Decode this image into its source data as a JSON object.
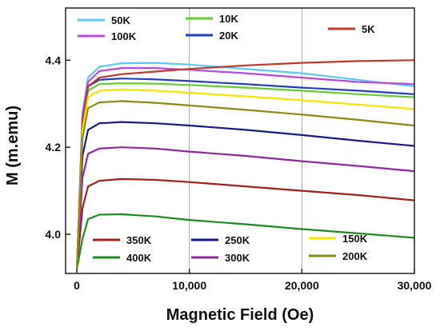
{
  "chart_data": {
    "type": "line",
    "title": "",
    "xlabel": "Magnetic Field (Oe)",
    "ylabel": "M (m.emu)",
    "xlim": [
      -1000,
      30000
    ],
    "ylim": [
      3.91,
      4.52
    ],
    "grid": "vertical",
    "x_ticks": [
      {
        "value": 0,
        "label": "0"
      },
      {
        "value": 10000,
        "label": "10,000"
      },
      {
        "value": 20000,
        "label": "20,000"
      },
      {
        "value": 30000,
        "label": "30,000"
      }
    ],
    "y_ticks": [
      {
        "value": 4.0,
        "label": "4.0"
      },
      {
        "value": 4.2,
        "label": "4.2"
      },
      {
        "value": 4.4,
        "label": "4.4"
      }
    ],
    "series": [
      {
        "name": "50K",
        "color": "#5ac8fa",
        "x": [
          0,
          500,
          1000,
          2000,
          4000,
          7000,
          10000,
          15000,
          20000,
          25000,
          30000
        ],
        "y": [
          3.92,
          4.28,
          4.36,
          4.385,
          4.393,
          4.394,
          4.39,
          4.38,
          4.37,
          4.355,
          4.34
        ]
      },
      {
        "name": "100K",
        "color": "#b84ae0",
        "x": [
          0,
          500,
          1000,
          2000,
          4000,
          7000,
          10000,
          15000,
          20000,
          25000,
          30000
        ],
        "y": [
          3.92,
          4.27,
          4.35,
          4.375,
          4.382,
          4.382,
          4.378,
          4.37,
          4.36,
          4.35,
          4.345
        ]
      },
      {
        "name": "10K",
        "color": "#66cc33",
        "x": [
          0,
          500,
          1000,
          2000,
          4000,
          7000,
          10000,
          15000,
          20000,
          25000,
          30000
        ],
        "y": [
          3.92,
          4.25,
          4.33,
          4.345,
          4.347,
          4.346,
          4.343,
          4.337,
          4.33,
          4.322,
          4.315
        ]
      },
      {
        "name": "20K",
        "color": "#1f3fbf",
        "x": [
          0,
          500,
          1000,
          2000,
          4000,
          7000,
          10000,
          15000,
          20000,
          25000,
          30000
        ],
        "y": [
          3.92,
          4.26,
          4.34,
          4.355,
          4.358,
          4.356,
          4.352,
          4.345,
          4.337,
          4.33,
          4.322
        ]
      },
      {
        "name": "5K",
        "color": "#c0392b",
        "x": [
          0,
          500,
          1000,
          2000,
          4000,
          7000,
          10000,
          15000,
          20000,
          25000,
          30000
        ],
        "y": [
          3.92,
          4.26,
          4.34,
          4.36,
          4.368,
          4.374,
          4.38,
          4.388,
          4.394,
          4.398,
          4.4
        ]
      },
      {
        "name": "350K",
        "color": "#a3201c",
        "x": [
          0,
          500,
          1000,
          2000,
          4000,
          7000,
          10000,
          15000,
          20000,
          25000,
          30000
        ],
        "y": [
          3.92,
          4.06,
          4.11,
          4.123,
          4.127,
          4.125,
          4.12,
          4.11,
          4.1,
          4.09,
          4.078
        ]
      },
      {
        "name": "400K",
        "color": "#1e8c1e",
        "x": [
          0,
          500,
          1000,
          2000,
          4000,
          7000,
          10000,
          15000,
          20000,
          25000,
          30000
        ],
        "y": [
          3.92,
          3.99,
          4.035,
          4.045,
          4.046,
          4.041,
          4.033,
          4.023,
          4.012,
          4.002,
          3.992
        ]
      },
      {
        "name": "250K",
        "color": "#1a1a8c",
        "x": [
          0,
          500,
          1000,
          2000,
          4000,
          7000,
          10000,
          15000,
          20000,
          25000,
          30000
        ],
        "y": [
          3.92,
          4.18,
          4.24,
          4.255,
          4.258,
          4.255,
          4.25,
          4.24,
          4.228,
          4.215,
          4.203
        ]
      },
      {
        "name": "300K",
        "color": "#8e2a9e",
        "x": [
          0,
          500,
          1000,
          2000,
          4000,
          7000,
          10000,
          15000,
          20000,
          25000,
          30000
        ],
        "y": [
          3.92,
          4.13,
          4.185,
          4.197,
          4.2,
          4.197,
          4.19,
          4.18,
          4.168,
          4.157,
          4.145
        ]
      },
      {
        "name": "150K",
        "color": "#f5e600",
        "x": [
          0,
          500,
          1000,
          2000,
          4000,
          7000,
          10000,
          15000,
          20000,
          25000,
          30000
        ],
        "y": [
          3.92,
          4.24,
          4.315,
          4.33,
          4.333,
          4.33,
          4.325,
          4.317,
          4.308,
          4.298,
          4.288
        ]
      },
      {
        "name": "200K",
        "color": "#8c8c14",
        "x": [
          0,
          500,
          1000,
          2000,
          4000,
          7000,
          10000,
          15000,
          20000,
          25000,
          30000
        ],
        "y": [
          3.92,
          4.22,
          4.29,
          4.303,
          4.306,
          4.302,
          4.296,
          4.286,
          4.275,
          4.263,
          4.25
        ]
      }
    ],
    "legend": [
      {
        "name": "50K",
        "color": "#5ac8fa",
        "position": "top"
      },
      {
        "name": "100K",
        "color": "#b84ae0",
        "position": "top"
      },
      {
        "name": "10K",
        "color": "#66cc33",
        "position": "top"
      },
      {
        "name": "20K",
        "color": "#1f3fbf",
        "position": "top"
      },
      {
        "name": "5K",
        "color": "#c0392b",
        "position": "top"
      },
      {
        "name": "350K",
        "color": "#a3201c",
        "position": "bottom"
      },
      {
        "name": "400K",
        "color": "#1e8c1e",
        "position": "bottom"
      },
      {
        "name": "250K",
        "color": "#1a1a8c",
        "position": "bottom"
      },
      {
        "name": "300K",
        "color": "#8e2a9e",
        "position": "bottom"
      },
      {
        "name": "150K",
        "color": "#f5e600",
        "position": "bottom"
      },
      {
        "name": "200K",
        "color": "#8c8c14",
        "position": "bottom"
      }
    ]
  }
}
